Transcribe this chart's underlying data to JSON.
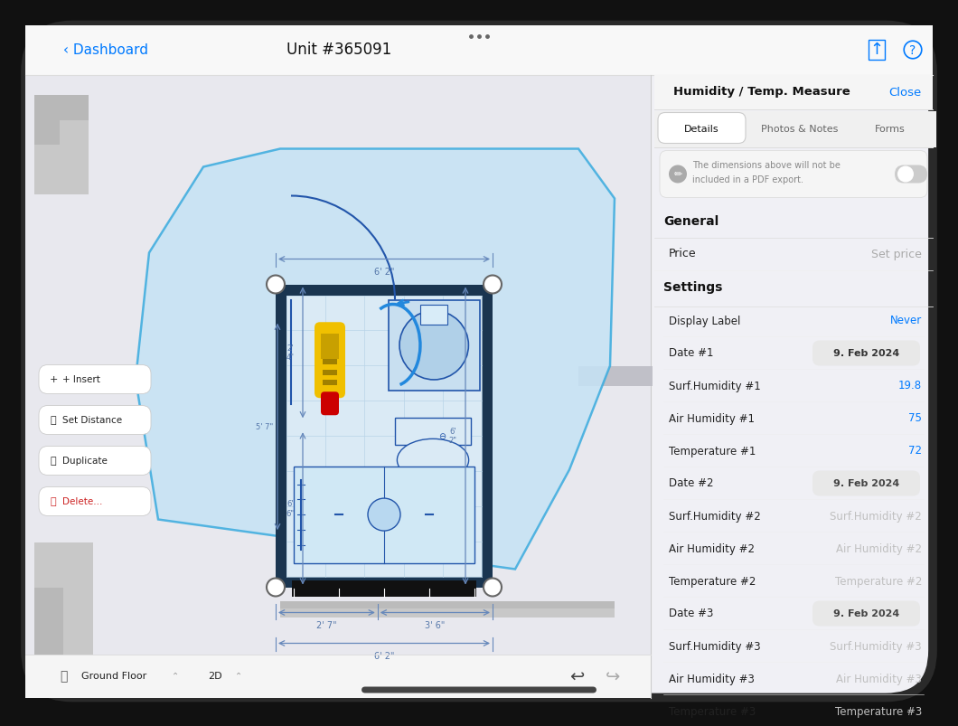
{
  "title": "Unit #365091",
  "dashboard_text": "‹ Dashboard",
  "panel_title": "Humidity / Temp. Measure",
  "close_text": "Close",
  "tab_details": "Details",
  "tab_photos": "Photos & Notes",
  "tab_forms": "Forms",
  "pdf_note_line1": "The dimensions above will not be",
  "pdf_note_line2": "included in a PDF export.",
  "general_label": "General",
  "price_label": "Price",
  "price_placeholder": "Set price",
  "settings_label": "Settings",
  "settings_rows": [
    {
      "label": "Display Label",
      "value": "Never",
      "value_color": "#007AFF",
      "pill": false
    },
    {
      "label": "Date #1",
      "value": "9. Feb 2024",
      "value_color": "#333333",
      "pill": true
    },
    {
      "label": "Surf.Humidity #1",
      "value": "19.8",
      "value_color": "#007AFF",
      "pill": false
    },
    {
      "label": "Air Humidity #1",
      "value": "75",
      "value_color": "#007AFF",
      "pill": false
    },
    {
      "label": "Temperature #1",
      "value": "72",
      "value_color": "#007AFF",
      "pill": false
    },
    {
      "label": "Date #2",
      "value": "9. Feb 2024",
      "value_color": "#444444",
      "pill": true
    },
    {
      "label": "Surf.Humidity #2",
      "value": "Surf.Humidity #2",
      "value_color": "#c0c0c0",
      "pill": false
    },
    {
      "label": "Air Humidity #2",
      "value": "Air Humidity #2",
      "value_color": "#c0c0c0",
      "pill": false
    },
    {
      "label": "Temperature #2",
      "value": "Temperature #2",
      "value_color": "#c0c0c0",
      "pill": false
    },
    {
      "label": "Date #3",
      "value": "9. Feb 2024",
      "value_color": "#444444",
      "pill": true
    },
    {
      "label": "Surf.Humidity #3",
      "value": "Surf.Humidity #3",
      "value_color": "#c0c0c0",
      "pill": false
    },
    {
      "label": "Air Humidity #3",
      "value": "Air Humidity #3",
      "value_color": "#c0c0c0",
      "pill": false
    },
    {
      "label": "Temperature #3",
      "value": "Temperature #3",
      "value_color": "#c0c0c0",
      "pill": false
    }
  ],
  "toolbar_items": [
    {
      "label": "+ Insert",
      "color": "#222222",
      "icon": "+"
    },
    {
      "label": "Set Distance",
      "color": "#222222",
      "icon": "➖"
    },
    {
      "label": "Duplicate",
      "color": "#222222",
      "icon": "⧉"
    },
    {
      "label": "Delete...",
      "color": "#cc2222",
      "icon": "🗑"
    }
  ],
  "floor_label": "Ground Floor",
  "view_label": "2D",
  "ipad_bg": "#eeeeee",
  "panel_bg": "#f7f7f7",
  "floor_area_bg": "#e5e5ea",
  "blue_poly_fill": "#c5e3f5",
  "blue_poly_edge": "#3aabde",
  "room_wall_color": "#1a3550",
  "room_floor_color": "#daeaf5",
  "dim_line_color": "#6688bb",
  "dim_text_color": "#5577aa"
}
